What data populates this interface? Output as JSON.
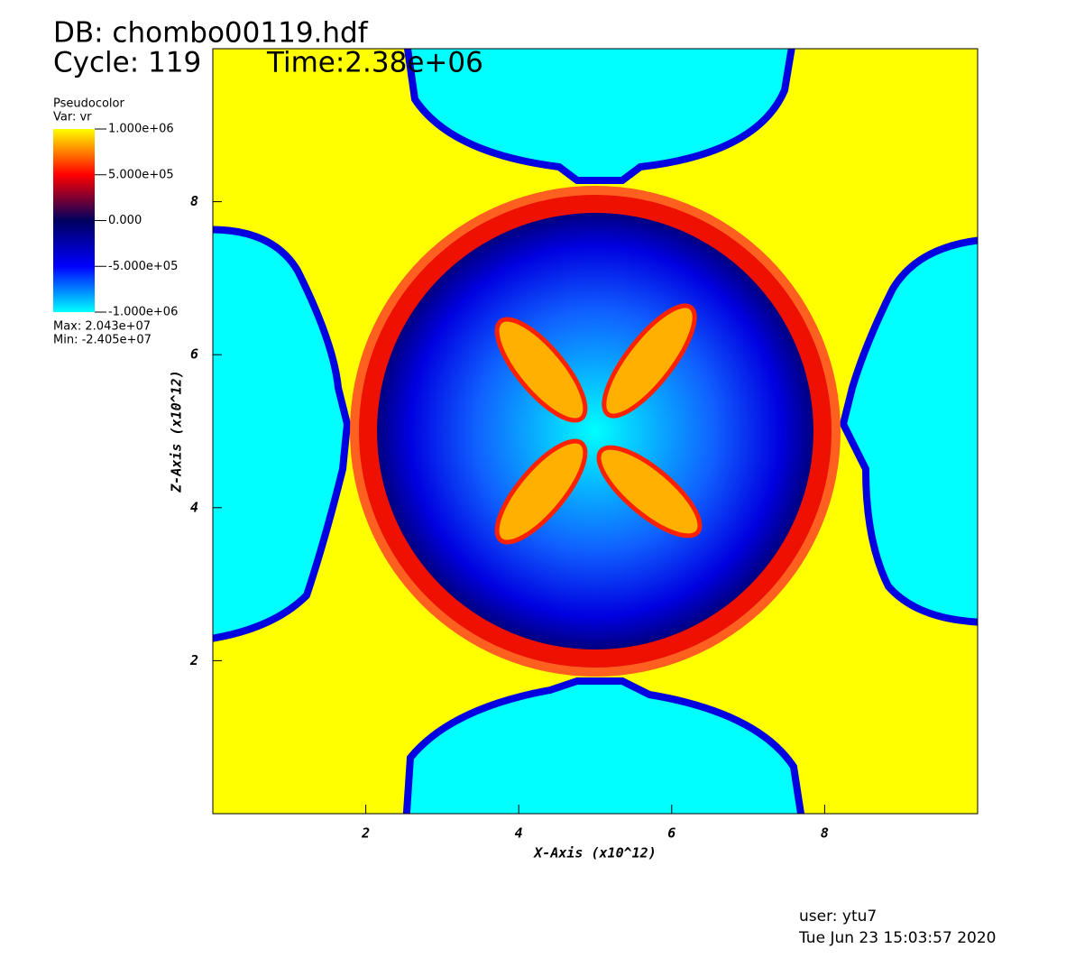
{
  "header": {
    "db": "DB: chombo00119.hdf",
    "cycle": "Cycle: 119",
    "time": "Time:2.38e+06"
  },
  "chart_data": {
    "type": "pseudocolor",
    "plot_title": "Pseudocolor",
    "variable": "Var: vr",
    "x_label": "X-Axis (x10^12)",
    "y_label": "Z-Axis (x10^12)",
    "xlim": [
      0,
      10
    ],
    "ylim": [
      0,
      10
    ],
    "xticks": [
      2,
      4,
      6,
      8
    ],
    "yticks": [
      2,
      4,
      6,
      8
    ],
    "colorbar": {
      "lim": [
        -1000000,
        1000000
      ],
      "ticks": [
        {
          "value": 1000000,
          "label": "1.000e+06"
        },
        {
          "value": 500000,
          "label": "5.000e+05"
        },
        {
          "value": 0,
          "label": "0.000"
        },
        {
          "value": -500000,
          "label": "-5.000e+05"
        },
        {
          "value": -1000000,
          "label": "-1.000e+06"
        }
      ],
      "colors": [
        "#00ffff",
        "#0000ff",
        "#000060",
        "#ff0000",
        "#ffff00"
      ]
    },
    "max_label": "Max:  2.043e+07",
    "min_label": "Min: -2.405e+07"
  },
  "footer": {
    "user": "user: ytu7",
    "date": "Tue Jun 23 15:03:57 2020"
  }
}
